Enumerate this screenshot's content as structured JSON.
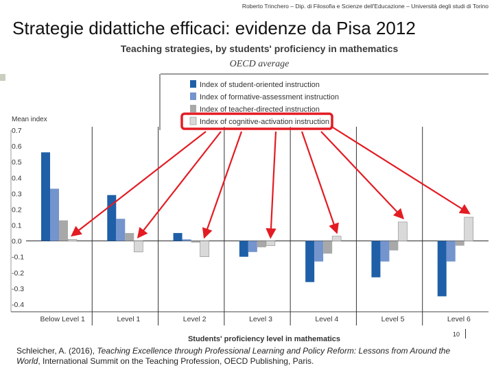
{
  "slide": {
    "header": "Roberto Trinchero – Dip. di Filosofia e Scienze dell'Educazione – Università degli studi di Torino",
    "title": "Strategie didattiche efficaci: evidenze da Pisa 2012",
    "citation_main": "Schleicher, A. (2016), ",
    "citation_title": "Teaching Excellence through Professional Learning and Policy Reform: Lessons from Around the World",
    "citation_rest": ", International Summit on the Teaching Profession, OECD Publishing, Paris.",
    "page_number": "10"
  },
  "chart_data": {
    "type": "bar",
    "title": "Teaching strategies, by students' proficiency in mathematics",
    "subtitle": "OECD average",
    "ylabel": "Mean index",
    "xlabel": "Students' proficiency level in mathematics",
    "ylim": [
      -0.4,
      0.7
    ],
    "yticks": [
      "0.7",
      "0.6",
      "0.5",
      "0.4",
      "0.3",
      "0.2",
      "0.1",
      "0.0",
      "-0.1",
      "-0.2",
      "-0.3",
      "-0.4"
    ],
    "categories": [
      "Below Level 1",
      "Level 1",
      "Level 2",
      "Level 3",
      "Level 4",
      "Level 5",
      "Level 6"
    ],
    "series": [
      {
        "name": "Index of student-oriented instruction",
        "color": "#1f5fa8",
        "values": [
          0.56,
          0.29,
          0.05,
          -0.1,
          -0.26,
          -0.23,
          -0.35
        ]
      },
      {
        "name": "Index of formative-assessment instruction",
        "color": "#7394cd",
        "values": [
          0.33,
          0.14,
          0.01,
          -0.07,
          -0.13,
          -0.13,
          -0.13
        ]
      },
      {
        "name": "Index of teacher-directed instruction",
        "color": "#a8a8a8",
        "values": [
          0.13,
          0.05,
          -0.01,
          -0.04,
          -0.08,
          -0.06,
          -0.03
        ]
      },
      {
        "name": "Index of cognitive-activation instruction",
        "color": "#d9d9d9",
        "values": [
          0.01,
          -0.07,
          -0.1,
          -0.03,
          0.03,
          0.12,
          0.15
        ]
      }
    ],
    "highlight": "Index of cognitive-activation instruction"
  }
}
